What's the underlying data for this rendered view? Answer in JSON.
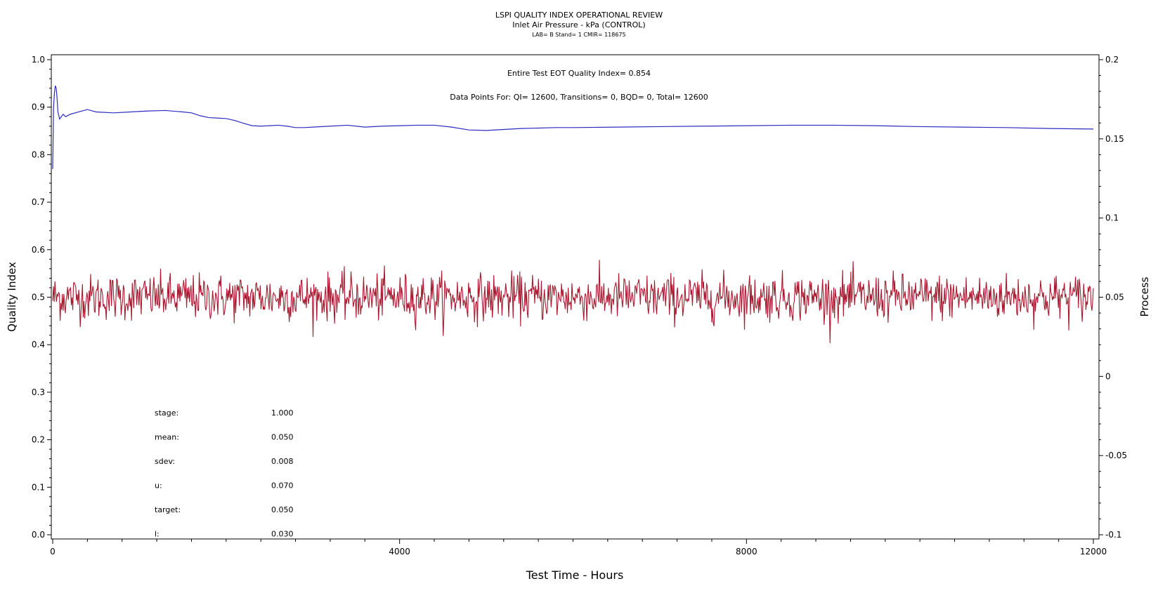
{
  "chart_data": {
    "type": "line",
    "title": "LSPI QUALITY INDEX OPERATIONAL REVIEW",
    "subtitle": "Inlet Air Pressure - kPa (CONTROL)",
    "subtitle2": "LAB= B Stand= 1 CMIR= 118675",
    "xlabel": "Test Time - Hours",
    "ylabel": "Quality Index",
    "y2label": "Process",
    "xlim": [
      0,
      12000
    ],
    "ylim": [
      0,
      1.0
    ],
    "y2lim": [
      -0.1,
      0.2
    ],
    "x_ticks": [
      "0",
      "4000",
      "8000",
      "12000"
    ],
    "y_ticks": [
      "0.0",
      "0.1",
      "0.2",
      "0.3",
      "0.4",
      "0.5",
      "0.6",
      "0.7",
      "0.8",
      "0.9",
      "1.0"
    ],
    "y2_ticks": [
      "-0.1",
      "-0.05",
      "0",
      "0.05",
      "0.1",
      "0.15",
      "0.2"
    ],
    "annotations": {
      "eot": "Entire Test EOT Quality Index=   0.854",
      "points": "Data Points For: QI= 12600, Transitions=     0, BQD=     0, Total= 12600"
    },
    "stats": [
      {
        "label": "stage:",
        "value": "1.000"
      },
      {
        "label": "mean:",
        "value": "0.050"
      },
      {
        "label": "sdev:",
        "value": "0.008"
      },
      {
        "label": "u:",
        "value": "0.070"
      },
      {
        "label": "target:",
        "value": "0.050"
      },
      {
        "label": "l:",
        "value": "0.030"
      }
    ],
    "series": [
      {
        "color": "#2b2bc2",
        "axis": "left",
        "x": [
          0,
          10,
          20,
          30,
          40,
          50,
          60,
          80,
          100,
          120,
          150,
          200,
          300,
          400,
          500,
          700,
          900,
          1100,
          1300,
          1500,
          1600,
          1700,
          1800,
          1900,
          2000,
          2100,
          2200,
          2300,
          2400,
          2500,
          2600,
          2700,
          2800,
          2900,
          3000,
          3200,
          3400,
          3600,
          3800,
          4000,
          4200,
          4400,
          4600,
          4800,
          5000,
          5200,
          5400,
          5600,
          5800,
          6000,
          6500,
          7000,
          7500,
          8000,
          8500,
          9000,
          9500,
          10000,
          10500,
          11000,
          11500,
          12000
        ],
        "values": [
          0.77,
          0.9,
          0.93,
          0.945,
          0.94,
          0.92,
          0.89,
          0.875,
          0.88,
          0.885,
          0.88,
          0.885,
          0.89,
          0.895,
          0.89,
          0.888,
          0.89,
          0.892,
          0.893,
          0.89,
          0.888,
          0.882,
          0.878,
          0.877,
          0.876,
          0.872,
          0.866,
          0.861,
          0.86,
          0.861,
          0.862,
          0.86,
          0.857,
          0.857,
          0.858,
          0.86,
          0.862,
          0.858,
          0.86,
          0.861,
          0.862,
          0.862,
          0.858,
          0.852,
          0.851,
          0.853,
          0.855,
          0.856,
          0.857,
          0.857,
          0.858,
          0.859,
          0.86,
          0.861,
          0.862,
          0.862,
          0.861,
          0.859,
          0.858,
          0.857,
          0.855,
          0.854
        ]
      },
      {
        "color": "#aa1830",
        "axis": "right",
        "x_range": [
          0,
          12000
        ],
        "center": 0.05,
        "sdev": 0.008,
        "n_points": 1400
      }
    ]
  }
}
